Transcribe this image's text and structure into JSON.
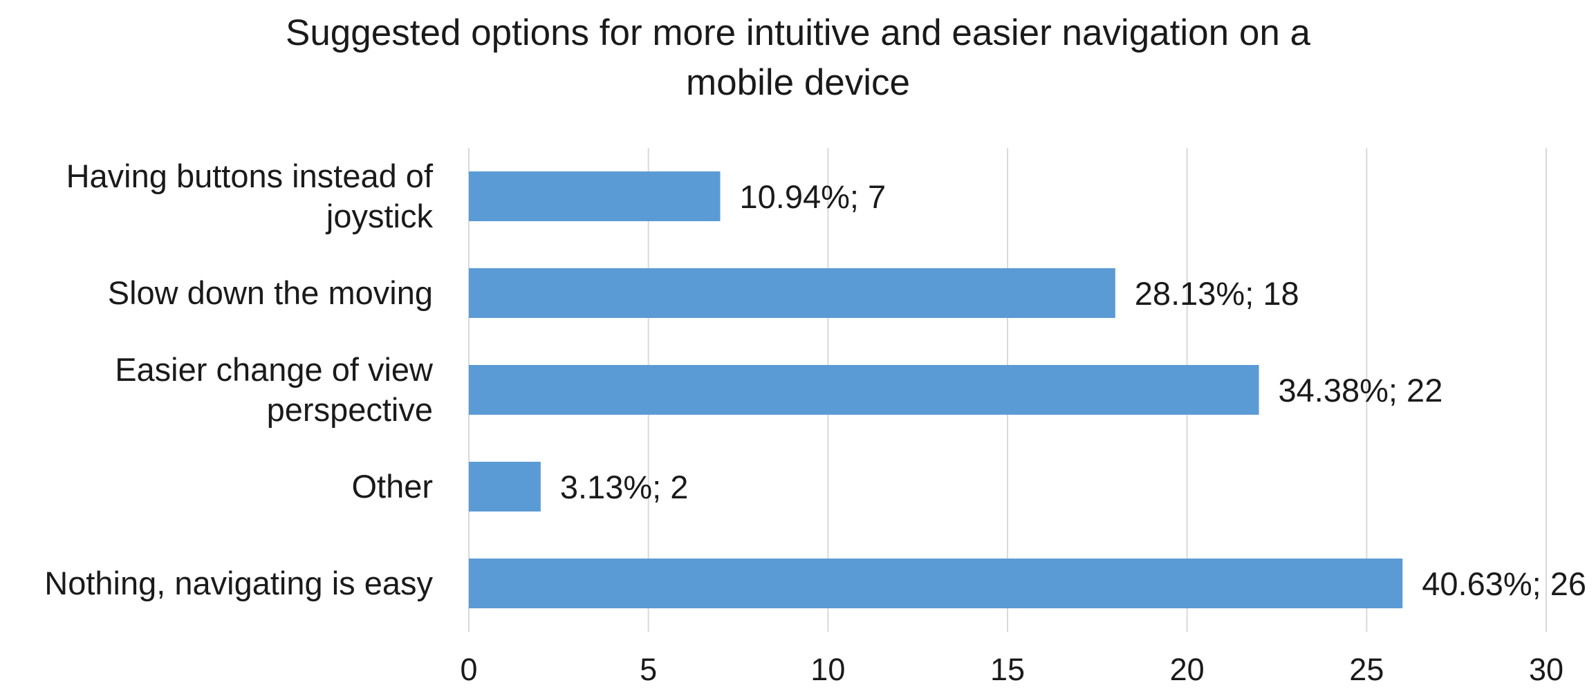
{
  "chart_data": {
    "type": "bar",
    "orientation": "horizontal",
    "title": "Suggested options for more intuitive and easier navigation on a\nmobile device",
    "xlabel": "",
    "ylabel": "",
    "xlim": [
      0,
      30
    ],
    "ticks": [
      0,
      5,
      10,
      15,
      20,
      25,
      30
    ],
    "grid": true,
    "legend": "none",
    "bar_color": "#5b9bd5",
    "grid_color": "#d9d9d9",
    "categories": [
      "Having buttons instead of\njoystick",
      "Slow down the moving",
      "Easier change of view\nperspective",
      "Other",
      "Nothing, navigating is easy"
    ],
    "values": [
      7,
      18,
      22,
      2,
      26
    ],
    "data_labels": [
      "10.94%; 7",
      "28.13%; 18",
      "34.38%; 22",
      "3.13%; 2",
      "40.63%; 26"
    ]
  }
}
